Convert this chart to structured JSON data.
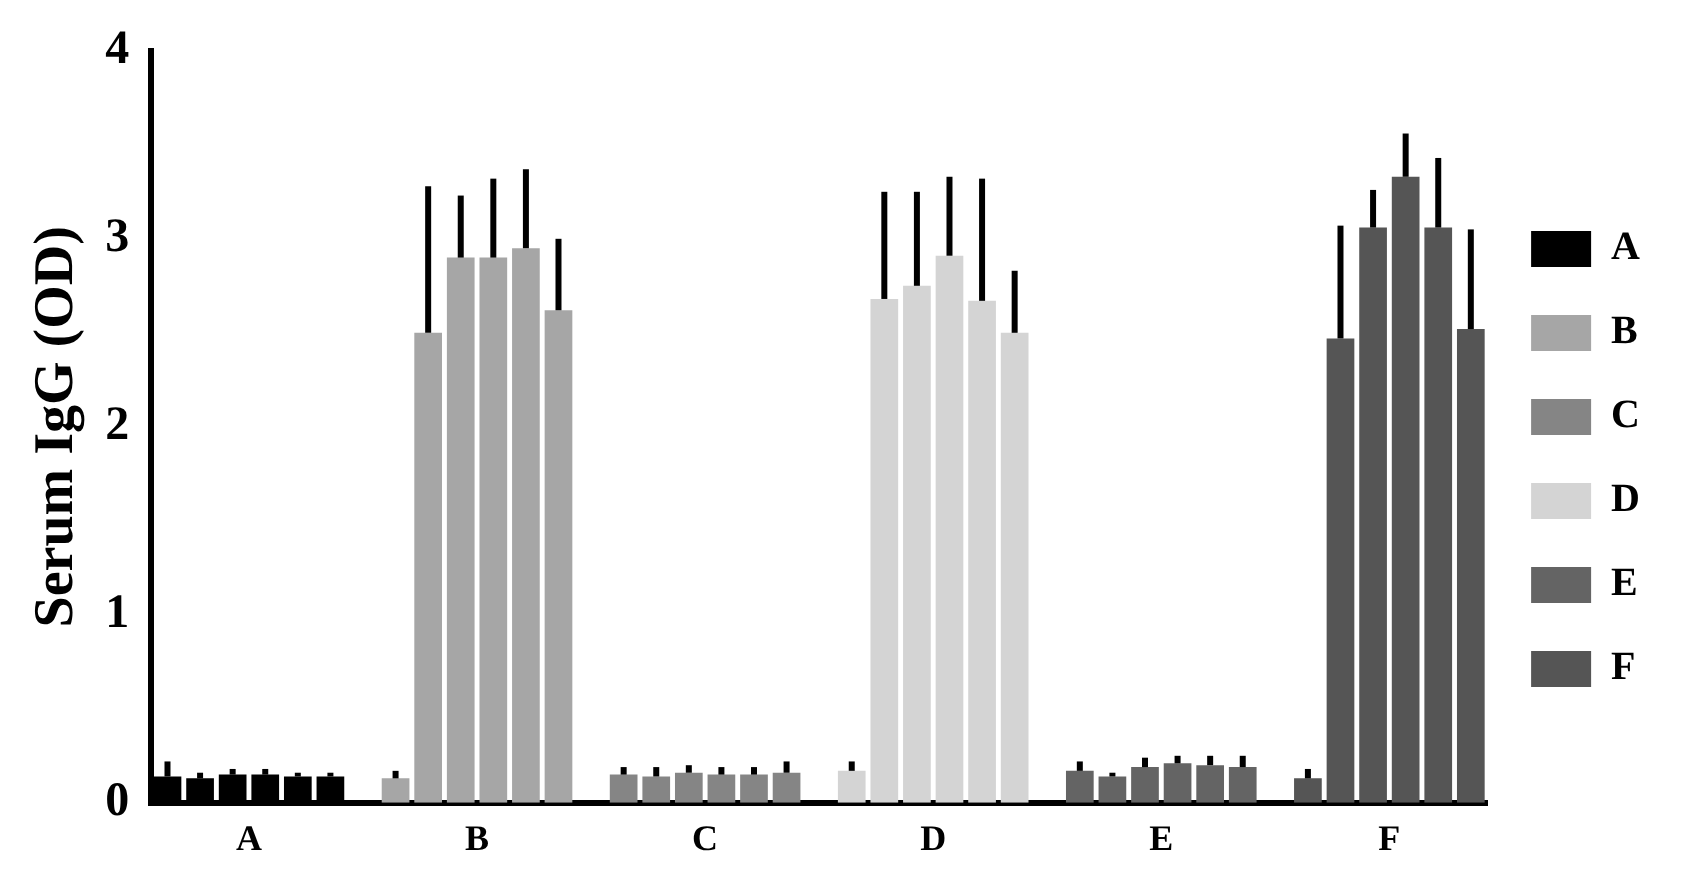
{
  "chart_data": {
    "type": "bar",
    "ylabel": "Serum IgG (OD)",
    "categories": [
      null,
      null,
      "A",
      null,
      null,
      null,
      null,
      null,
      null,
      "B",
      null,
      null,
      null,
      null,
      null,
      null,
      "C",
      null,
      null,
      null,
      null,
      null,
      null,
      "D",
      null,
      null,
      null,
      null,
      null,
      null,
      "E",
      null,
      null,
      null,
      null,
      null,
      null,
      "F",
      null,
      null,
      null
    ],
    "series": [
      {
        "name": "A",
        "color": "#000000",
        "values": [
          0.14,
          0.13,
          0.15,
          0.15,
          0.14,
          0.14,
          null,
          null,
          null,
          null,
          null,
          null,
          null,
          null,
          null,
          null,
          null,
          null,
          null,
          null,
          null,
          null,
          null,
          null,
          null,
          null,
          null,
          null,
          null,
          null,
          null,
          null,
          null,
          null,
          null,
          null,
          null,
          null,
          null,
          null,
          null
        ],
        "errors": [
          0.08,
          0.03,
          0.03,
          0.03,
          0.02,
          0.02,
          null,
          null,
          null,
          null,
          null,
          null,
          null,
          null,
          null,
          null,
          null,
          null,
          null,
          null,
          null,
          null,
          null,
          null,
          null,
          null,
          null,
          null,
          null,
          null,
          null,
          null,
          null,
          null,
          null,
          null,
          null,
          null,
          null,
          null,
          null
        ]
      },
      {
        "name": "B",
        "color": "#a6a6a6",
        "values": [
          null,
          null,
          null,
          null,
          null,
          null,
          null,
          0.13,
          2.5,
          2.9,
          2.9,
          2.95,
          2.62,
          null,
          null,
          null,
          null,
          null,
          null,
          null,
          null,
          null,
          null,
          null,
          null,
          null,
          null,
          null,
          null,
          null,
          null,
          null,
          null,
          null,
          null,
          null,
          null,
          null,
          null,
          null,
          null
        ],
        "errors": [
          null,
          null,
          null,
          null,
          null,
          null,
          null,
          0.04,
          0.78,
          0.33,
          0.42,
          0.42,
          0.38,
          null,
          null,
          null,
          null,
          null,
          null,
          null,
          null,
          null,
          null,
          null,
          null,
          null,
          null,
          null,
          null,
          null,
          null,
          null,
          null,
          null,
          null,
          null,
          null,
          null,
          null,
          null,
          null
        ]
      },
      {
        "name": "C",
        "color": "#858585",
        "values": [
          null,
          null,
          null,
          null,
          null,
          null,
          null,
          null,
          null,
          null,
          null,
          null,
          null,
          null,
          0.15,
          0.14,
          0.16,
          0.15,
          0.15,
          0.16,
          null,
          null,
          null,
          null,
          null,
          null,
          null,
          null,
          null,
          null,
          null,
          null,
          null,
          null,
          null,
          null,
          null,
          null,
          null,
          null,
          null
        ],
        "errors": [
          null,
          null,
          null,
          null,
          null,
          null,
          null,
          null,
          null,
          null,
          null,
          null,
          null,
          null,
          0.04,
          0.05,
          0.04,
          0.04,
          0.04,
          0.06,
          null,
          null,
          null,
          null,
          null,
          null,
          null,
          null,
          null,
          null,
          null,
          null,
          null,
          null,
          null,
          null,
          null,
          null,
          null,
          null,
          null
        ]
      },
      {
        "name": "D",
        "color": "#d4d4d4",
        "values": [
          null,
          null,
          null,
          null,
          null,
          null,
          null,
          null,
          null,
          null,
          null,
          null,
          null,
          null,
          null,
          null,
          null,
          null,
          null,
          null,
          null,
          0.17,
          2.68,
          2.75,
          2.91,
          2.67,
          2.5,
          null,
          null,
          null,
          null,
          null,
          null,
          null,
          null,
          null,
          null,
          null,
          null,
          null,
          null
        ],
        "errors": [
          null,
          null,
          null,
          null,
          null,
          null,
          null,
          null,
          null,
          null,
          null,
          null,
          null,
          null,
          null,
          null,
          null,
          null,
          null,
          null,
          null,
          0.05,
          0.57,
          0.5,
          0.42,
          0.65,
          0.33,
          null,
          null,
          null,
          null,
          null,
          null,
          null,
          null,
          null,
          null,
          null,
          null,
          null,
          null
        ]
      },
      {
        "name": "E",
        "color": "#646464",
        "values": [
          null,
          null,
          null,
          null,
          null,
          null,
          null,
          null,
          null,
          null,
          null,
          null,
          null,
          null,
          null,
          null,
          null,
          null,
          null,
          null,
          null,
          null,
          null,
          null,
          null,
          null,
          null,
          null,
          0.17,
          0.14,
          0.19,
          0.21,
          0.2,
          0.19,
          null,
          null,
          null,
          null,
          null,
          null,
          null
        ],
        "errors": [
          null,
          null,
          null,
          null,
          null,
          null,
          null,
          null,
          null,
          null,
          null,
          null,
          null,
          null,
          null,
          null,
          null,
          null,
          null,
          null,
          null,
          null,
          null,
          null,
          null,
          null,
          null,
          null,
          0.05,
          0.02,
          0.05,
          0.04,
          0.05,
          0.06,
          null,
          null,
          null,
          null,
          null,
          null,
          null
        ]
      },
      {
        "name": "F",
        "color": "#555555",
        "values": [
          null,
          null,
          null,
          null,
          null,
          null,
          null,
          null,
          null,
          null,
          null,
          null,
          null,
          null,
          null,
          null,
          null,
          null,
          null,
          null,
          null,
          null,
          null,
          null,
          null,
          null,
          null,
          null,
          null,
          null,
          null,
          null,
          null,
          null,
          null,
          0.13,
          2.47,
          3.06,
          3.33,
          3.06,
          2.52
        ],
        "errors": [
          null,
          null,
          null,
          null,
          null,
          null,
          null,
          null,
          null,
          null,
          null,
          null,
          null,
          null,
          null,
          null,
          null,
          null,
          null,
          null,
          null,
          null,
          null,
          null,
          null,
          null,
          null,
          null,
          null,
          null,
          null,
          null,
          null,
          null,
          null,
          0.05,
          0.6,
          0.2,
          0.23,
          0.37,
          0.53
        ]
      }
    ],
    "ylim": [
      0,
      4
    ],
    "yticks": [
      0,
      1,
      2,
      3,
      4
    ],
    "grid": false,
    "legend": "right"
  }
}
